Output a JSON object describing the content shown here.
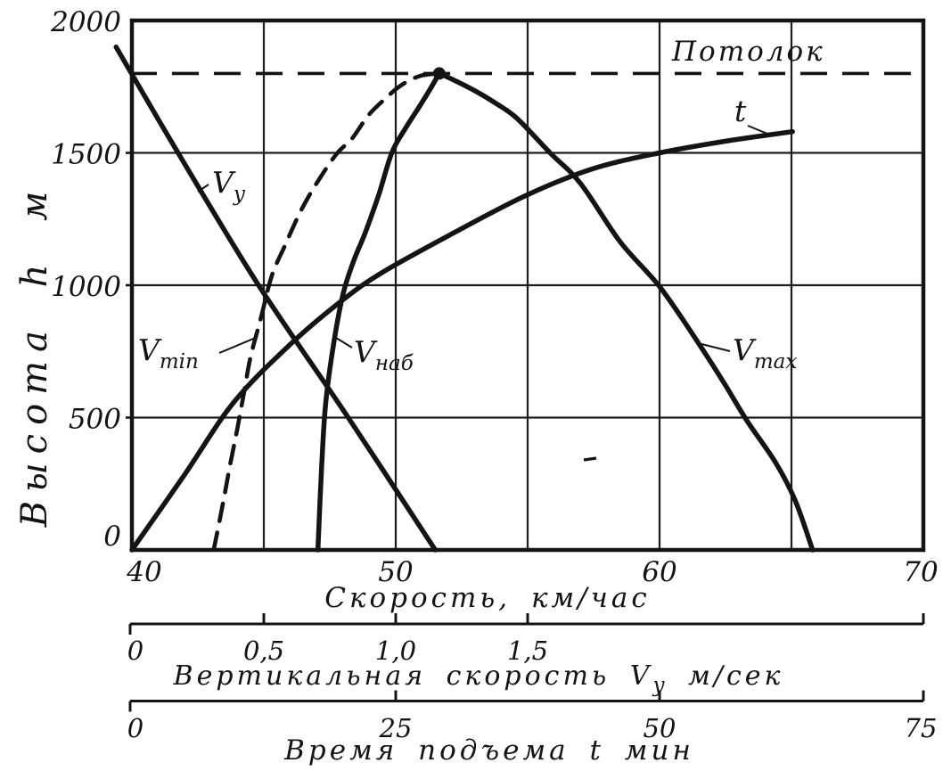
{
  "figure": {
    "ink_color": "#141414",
    "paper_color": "#ffffff"
  },
  "labels": {
    "ceiling": "Потолок",
    "vy": {
      "main": "V",
      "sub": "y"
    },
    "vmin": {
      "main": "V",
      "sub": "min"
    },
    "vnab": {
      "main": "V",
      "sub": "наб"
    },
    "vmax": {
      "main": "V",
      "sub": "max"
    },
    "t": "t"
  },
  "chart_data": {
    "type": "line",
    "title": "",
    "grid": true,
    "y_axis": {
      "label": "Высота h м",
      "range": [
        0,
        2000
      ],
      "ticks": [
        0,
        500,
        1000,
        1500,
        2000
      ],
      "tick_labels": [
        "0",
        "500",
        "1000",
        "1500",
        "2000"
      ],
      "gridlines": [
        500,
        1000,
        1500
      ]
    },
    "x_axes": {
      "speed_kmh": {
        "label": "Скорость, км/час",
        "range": [
          40,
          70
        ],
        "ticks": [
          40,
          50,
          60,
          70
        ],
        "tick_labels": [
          "40",
          "50",
          "60",
          "70"
        ],
        "gridlines": [
          45,
          50,
          55,
          60,
          65
        ]
      },
      "vy_ms": {
        "label_parts": {
          "pre": "Вертикальная скорость V",
          "sub": "y",
          "post": " м/сек"
        },
        "range": [
          0,
          3.0
        ],
        "ticks": [
          0,
          0.5,
          1.0,
          1.5
        ],
        "tick_labels": [
          "0",
          "0,5",
          "1,0",
          "1,5"
        ]
      },
      "time_min": {
        "label": "Время подъема t мин",
        "range": [
          0,
          75
        ],
        "ticks": [
          0,
          25,
          50,
          75
        ],
        "tick_labels": [
          "0",
          "25",
          "50",
          "75"
        ]
      }
    },
    "ceiling": {
      "label": "Потолок",
      "altitude_m": 1800
    },
    "ceiling_point": {
      "axis": "speed_kmh",
      "x": 51.65,
      "y": 1800
    },
    "series": [
      {
        "name": "Vy",
        "axis": "vy_ms",
        "style": "solid",
        "points": [
          [
            -0.06,
            1900
          ],
          [
            0.175,
            1500
          ],
          [
            0.48,
            1000
          ],
          [
            0.82,
            500
          ],
          [
            1.15,
            0
          ]
        ]
      },
      {
        "name": "Vmin",
        "axis": "speed_kmh",
        "style": "dashed",
        "points": [
          [
            43.1,
            0
          ],
          [
            43.45,
            175
          ],
          [
            43.7,
            310
          ],
          [
            44.0,
            460
          ],
          [
            44.25,
            595
          ],
          [
            44.5,
            730
          ],
          [
            44.9,
            880
          ],
          [
            45.3,
            1035
          ],
          [
            45.8,
            1150
          ],
          [
            46.4,
            1280
          ],
          [
            47.0,
            1385
          ],
          [
            47.75,
            1495
          ],
          [
            48.35,
            1555
          ],
          [
            48.95,
            1640
          ],
          [
            49.55,
            1700
          ],
          [
            50.2,
            1755
          ],
          [
            50.9,
            1790
          ],
          [
            51.6,
            1800
          ]
        ]
      },
      {
        "name": "Vнаб",
        "axis": "speed_kmh",
        "style": "solid",
        "points": [
          [
            47.05,
            0
          ],
          [
            47.2,
            330
          ],
          [
            47.35,
            560
          ],
          [
            47.65,
            780
          ],
          [
            48.0,
            965
          ],
          [
            48.4,
            1090
          ],
          [
            48.85,
            1200
          ],
          [
            49.35,
            1340
          ],
          [
            49.85,
            1500
          ],
          [
            50.35,
            1590
          ],
          [
            50.9,
            1675
          ],
          [
            51.3,
            1740
          ],
          [
            51.65,
            1800
          ]
        ]
      },
      {
        "name": "Vmax",
        "axis": "speed_kmh",
        "style": "solid",
        "points": [
          [
            51.65,
            1800
          ],
          [
            52.2,
            1775
          ],
          [
            52.9,
            1740
          ],
          [
            53.75,
            1690
          ],
          [
            54.6,
            1630
          ],
          [
            55.85,
            1500
          ],
          [
            57.0,
            1385
          ],
          [
            58.5,
            1165
          ],
          [
            60.0,
            995
          ],
          [
            61.35,
            800
          ],
          [
            62.45,
            630
          ],
          [
            63.3,
            490
          ],
          [
            64.4,
            330
          ],
          [
            65.15,
            185
          ],
          [
            65.8,
            0
          ]
        ]
      },
      {
        "name": "t",
        "axis": "time_min",
        "style": "solid",
        "points": [
          [
            0,
            0
          ],
          [
            5,
            285
          ],
          [
            9.7,
            560
          ],
          [
            15.1,
            780
          ],
          [
            20,
            945
          ],
          [
            23.8,
            1050
          ],
          [
            30.6,
            1200
          ],
          [
            37.4,
            1340
          ],
          [
            43.7,
            1440
          ],
          [
            50,
            1500
          ],
          [
            56.4,
            1545
          ],
          [
            62.6,
            1580
          ]
        ]
      }
    ]
  }
}
